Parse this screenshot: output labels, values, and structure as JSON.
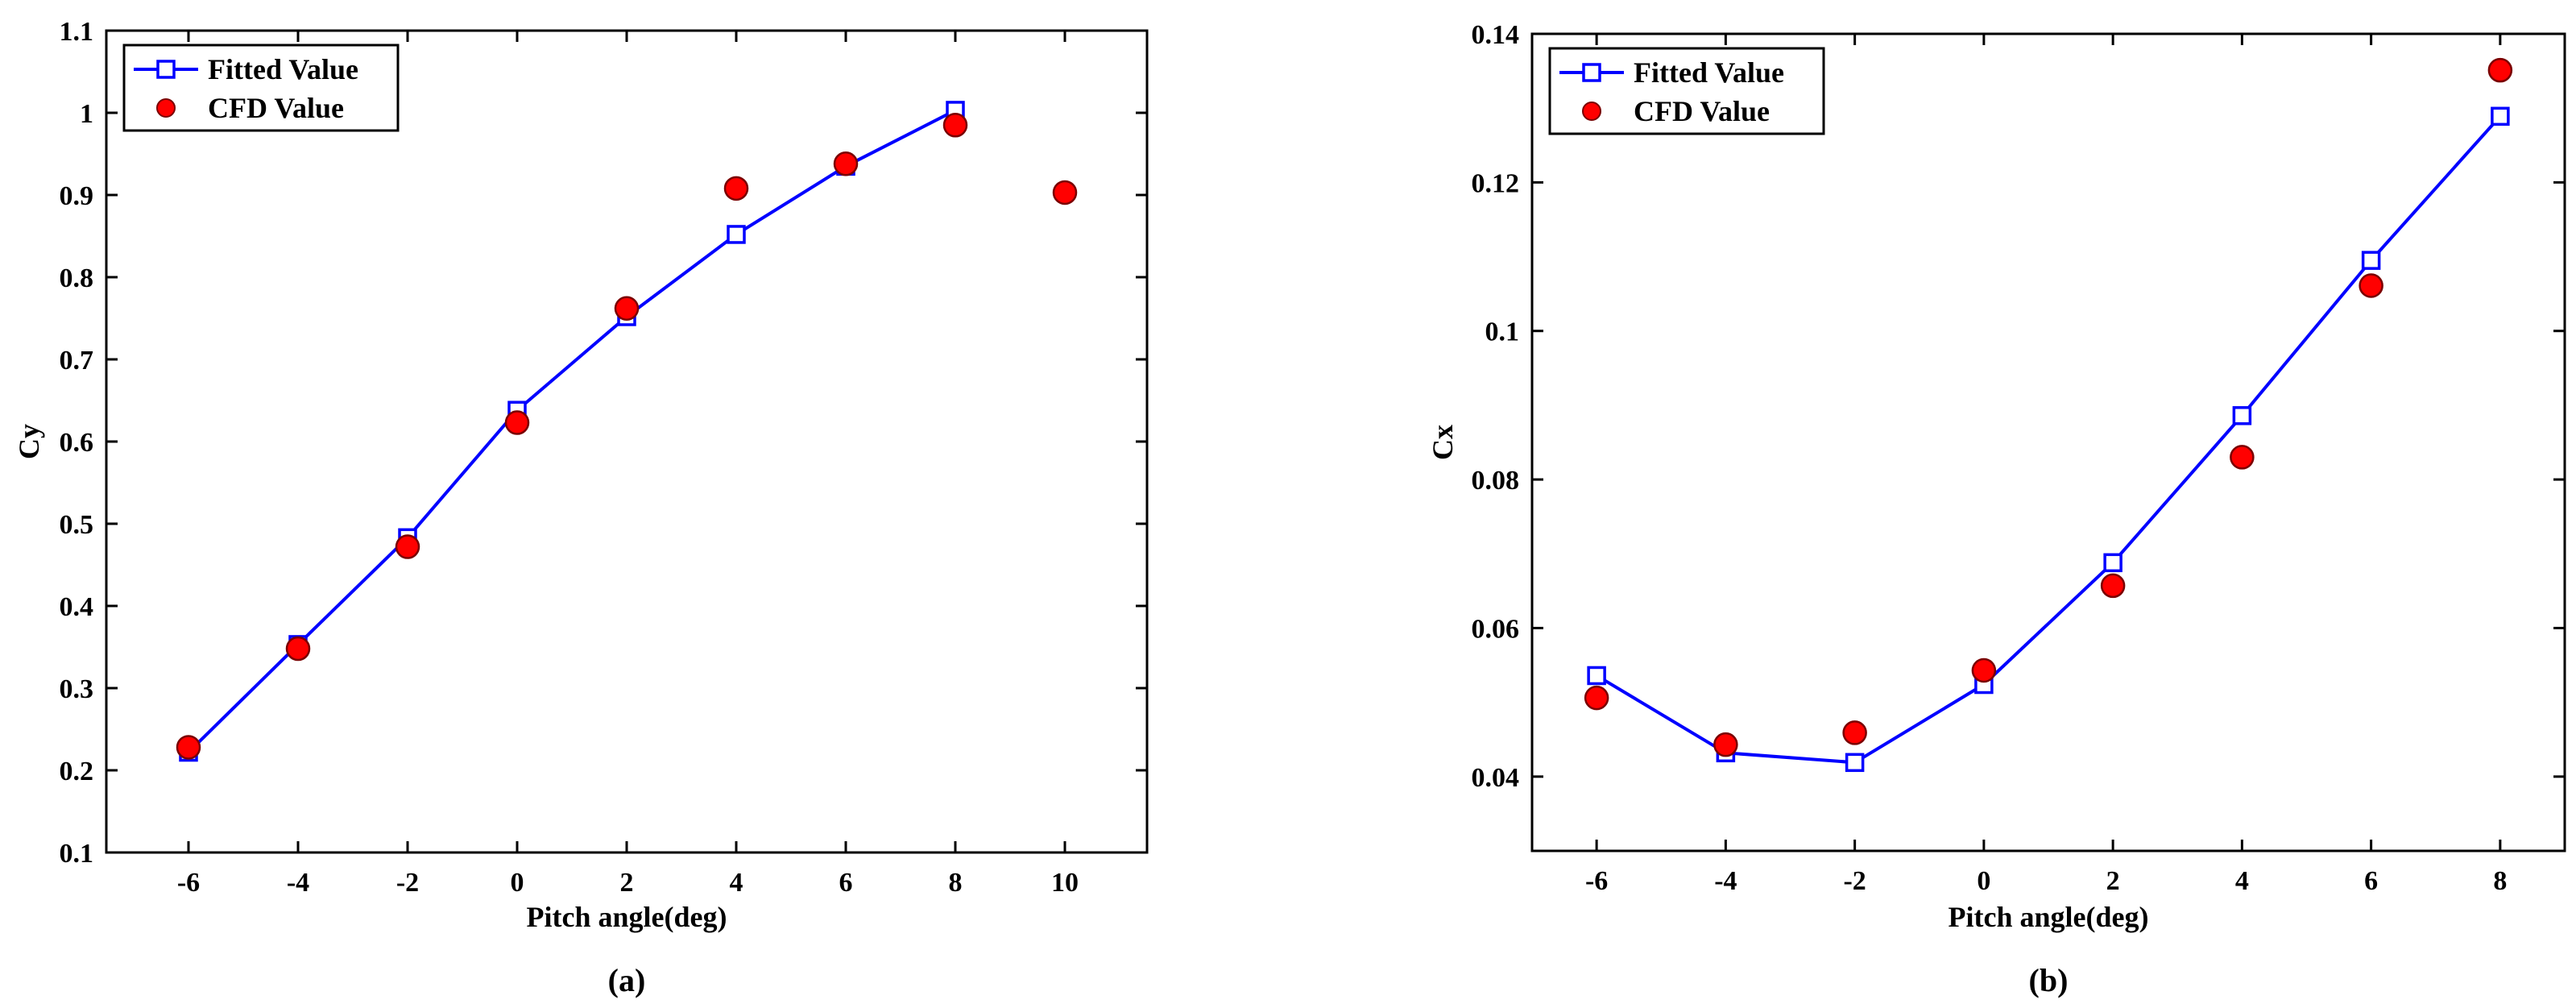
{
  "colors": {
    "fitted": "#0000ff",
    "cfd": "#ff0000",
    "cfd_edge": "#7a0000",
    "axes": "#000000"
  },
  "chart_data": [
    {
      "type": "line",
      "panel_label": "(a)",
      "panel_letter": "a",
      "xlabel": "Pitch angle(deg)",
      "ylabel": "Cy",
      "xlim": [
        -7.5,
        11.5
      ],
      "ylim": [
        0.1,
        1.1
      ],
      "xticks": [
        -6,
        -4,
        -2,
        0,
        2,
        4,
        6,
        8,
        10
      ],
      "xtick_labels": [
        "-6",
        "-4",
        "-2",
        "0",
        "2",
        "4",
        "6",
        "8",
        "10"
      ],
      "yticks": [
        0.1,
        0.2,
        0.3,
        0.4,
        0.5,
        0.6,
        0.7,
        0.8,
        0.9,
        1.0,
        1.1
      ],
      "ytick_labels": [
        "0.1",
        "0.2",
        "0.3",
        "0.4",
        "0.5",
        "0.6",
        "0.7",
        "0.8",
        "0.9",
        "1",
        "1.1"
      ],
      "legend_position": "top-left",
      "series": [
        {
          "name": "Fitted Value",
          "style": "line-square",
          "x": [
            -6,
            -4,
            -2,
            0,
            2,
            4,
            6,
            8
          ],
          "y": [
            0.222,
            0.353,
            0.483,
            0.638,
            0.752,
            0.852,
            0.935,
            1.003
          ]
        },
        {
          "name": "CFD Value",
          "style": "circle",
          "x": [
            -6,
            -4,
            -2,
            0,
            2,
            4,
            6,
            8,
            10
          ],
          "y": [
            0.228,
            0.348,
            0.472,
            0.623,
            0.762,
            0.908,
            0.938,
            0.985,
            0.903
          ]
        }
      ]
    },
    {
      "type": "line",
      "panel_label": "(b)",
      "panel_letter": "b",
      "xlabel": "Pitch angle(deg)",
      "ylabel": "Cx",
      "xlim": [
        -7,
        9
      ],
      "ylim": [
        0.03,
        0.14
      ],
      "xticks": [
        -6,
        -4,
        -2,
        0,
        2,
        4,
        6,
        8
      ],
      "xtick_labels": [
        "-6",
        "-4",
        "-2",
        "0",
        "2",
        "4",
        "6",
        "8"
      ],
      "yticks": [
        0.04,
        0.06,
        0.08,
        0.1,
        0.12,
        0.14
      ],
      "ytick_labels": [
        "0.04",
        "0.06",
        "0.08",
        "0.1",
        "0.12",
        "0.14"
      ],
      "legend_position": "top-left",
      "series": [
        {
          "name": "Fitted Value",
          "style": "line-square",
          "x": [
            -6,
            -4,
            -2,
            0,
            2,
            4,
            6,
            8
          ],
          "y": [
            0.0536,
            0.0432,
            0.0419,
            0.0524,
            0.0688,
            0.0886,
            0.1095,
            0.1289
          ]
        },
        {
          "name": "CFD Value",
          "style": "circle",
          "x": [
            -6,
            -4,
            -2,
            0,
            2,
            4,
            6,
            8
          ],
          "y": [
            0.0506,
            0.0443,
            0.0459,
            0.0543,
            0.0657,
            0.083,
            0.1061,
            0.1351
          ]
        }
      ]
    }
  ]
}
